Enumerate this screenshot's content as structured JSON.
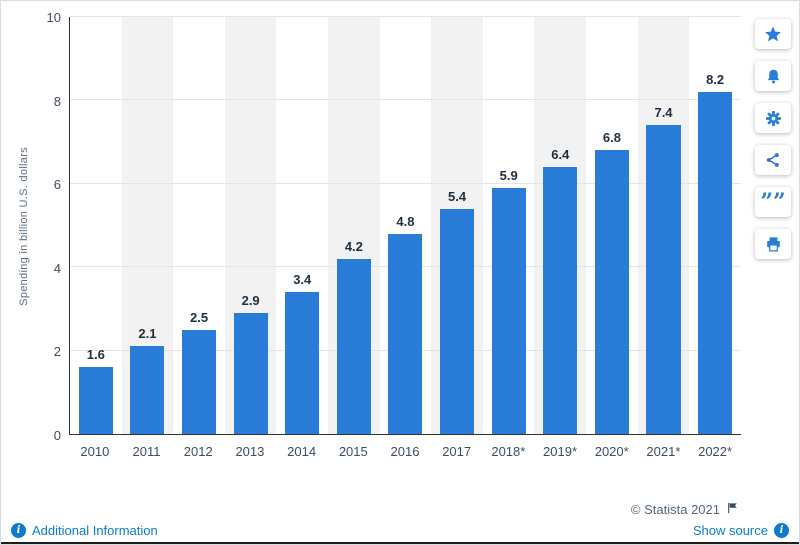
{
  "page": {
    "copyright": "© Statista 2021"
  },
  "chart_data": {
    "type": "bar",
    "categories": [
      "2010",
      "2011",
      "2012",
      "2013",
      "2014",
      "2015",
      "2016",
      "2017",
      "2018*",
      "2019*",
      "2020*",
      "2021*",
      "2022*"
    ],
    "values": [
      1.6,
      2.1,
      2.5,
      2.9,
      3.4,
      4.2,
      4.8,
      5.4,
      5.9,
      6.4,
      6.8,
      7.4,
      8.2
    ],
    "title": "",
    "xlabel": "",
    "ylabel": "Spending in billion U.S. dollars",
    "ylim": [
      0,
      10
    ],
    "yticks": [
      0,
      2,
      4,
      6,
      8,
      10
    ],
    "grid": true,
    "legend": false,
    "bar_color": "#2a7cd9",
    "stripe_color": "#f2f2f2",
    "value_label_color": "#1f2f3f"
  },
  "toolbar": {
    "icons": [
      "star",
      "bell",
      "settings",
      "share",
      "cite",
      "print"
    ],
    "quote_glyph": "””"
  },
  "footer": {
    "additional_information_label": "Additional Information",
    "show_source_label": "Show source",
    "info_glyph": "i"
  }
}
